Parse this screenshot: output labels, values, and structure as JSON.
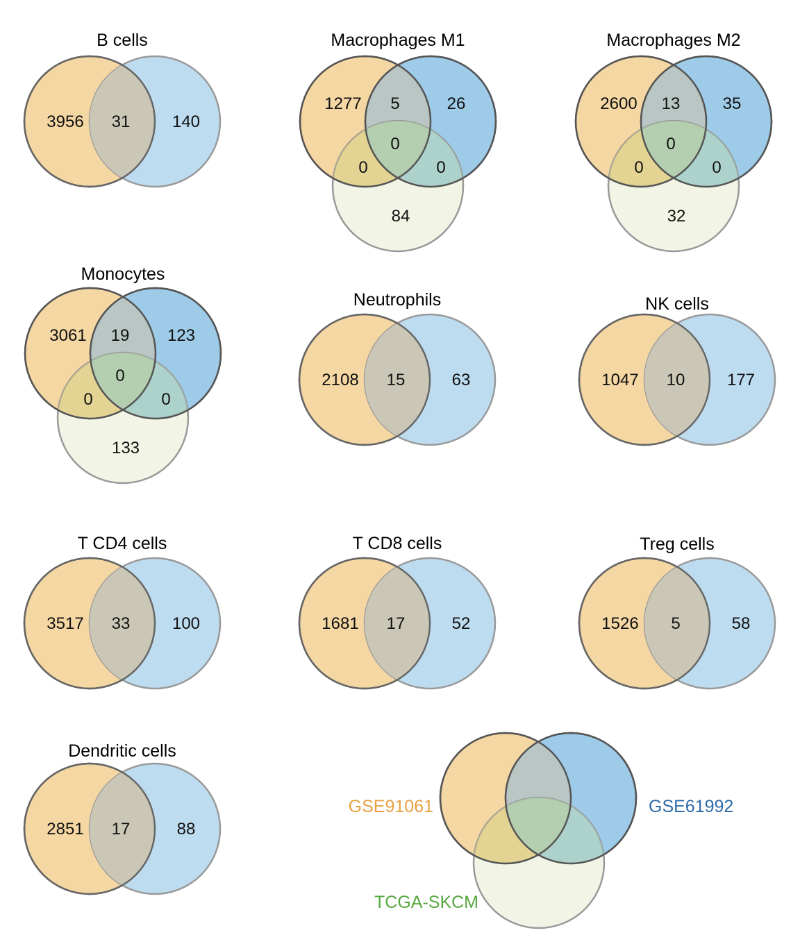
{
  "colors": {
    "set_a_fill": "#f5d7a3",
    "set_b_fill": "#bddcf0",
    "set_b_fill_strong": "#9ecbe8",
    "set_c_fill": "#e8eccf",
    "set_a_label": "#e8a040",
    "set_b_label": "#2e6aa8",
    "set_c_label": "#56a83f"
  },
  "legend": {
    "set_a": "GSE91061",
    "set_b": "GSE61992",
    "set_c": "TCGA-SKCM"
  },
  "panels": [
    {
      "title": "B cells",
      "sets": 2,
      "counts": {
        "a": "3956",
        "ab": "31",
        "b": "140"
      }
    },
    {
      "title": "Macrophages M1",
      "sets": 3,
      "counts": {
        "a": "1277",
        "ab": "5",
        "b": "26",
        "abc": "0",
        "ac": "0",
        "bc": "0",
        "c": "84"
      }
    },
    {
      "title": "Macrophages M2",
      "sets": 3,
      "counts": {
        "a": "2600",
        "ab": "13",
        "b": "35",
        "abc": "0",
        "ac": "0",
        "bc": "0",
        "c": "32"
      }
    },
    {
      "title": "Monocytes",
      "sets": 3,
      "counts": {
        "a": "3061",
        "ab": "19",
        "b": "123",
        "abc": "0",
        "ac": "0",
        "bc": "0",
        "c": "133"
      }
    },
    {
      "title": "Neutrophils",
      "sets": 2,
      "counts": {
        "a": "2108",
        "ab": "15",
        "b": "63"
      }
    },
    {
      "title": "NK cells",
      "sets": 2,
      "counts": {
        "a": "1047",
        "ab": "10",
        "b": "177"
      }
    },
    {
      "title": "T CD4 cells",
      "sets": 2,
      "counts": {
        "a": "3517",
        "ab": "33",
        "b": "100"
      }
    },
    {
      "title": "T CD8 cells",
      "sets": 2,
      "counts": {
        "a": "1681",
        "ab": "17",
        "b": "52"
      }
    },
    {
      "title": "Treg cells",
      "sets": 2,
      "counts": {
        "a": "1526",
        "ab": "5",
        "b": "58"
      }
    },
    {
      "title": "Dendritic cells",
      "sets": 2,
      "counts": {
        "a": "2851",
        "ab": "17",
        "b": "88"
      }
    }
  ]
}
